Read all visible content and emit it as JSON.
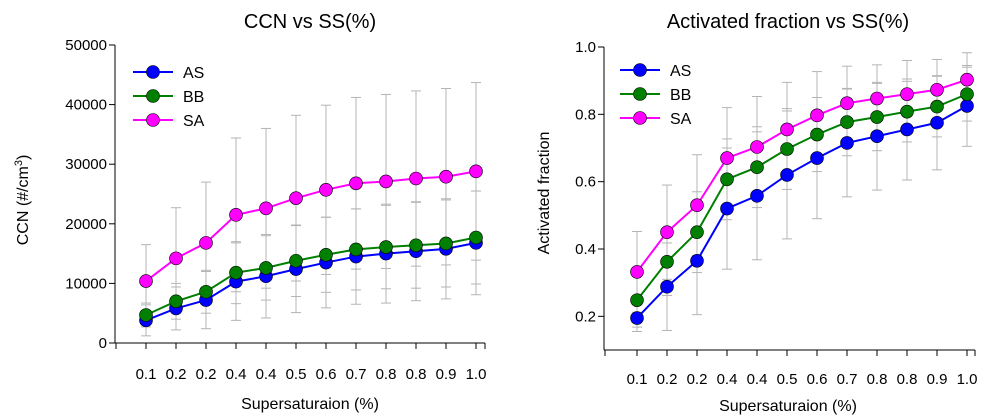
{
  "chart_data": [
    {
      "type": "line",
      "title": "CCN vs SS(%)",
      "xlabel": "Supersaturaion (%)",
      "ylabel_main": "CCN (#/cm",
      "ylabel_sup": "3",
      "ylabel_end": ")",
      "x": [
        0.1,
        0.2,
        0.2,
        0.4,
        0.4,
        0.5,
        0.6,
        0.7,
        0.8,
        0.8,
        0.9,
        1.0
      ],
      "x_tick_labels": [
        "0.1",
        "0.2",
        "0.2",
        "0.4",
        "0.4",
        "0.5",
        "0.6",
        "0.7",
        "0.8",
        "0.8",
        "0.9",
        "1.0"
      ],
      "ylim": [
        0,
        50000
      ],
      "y_ticks": [
        0,
        10000,
        20000,
        30000,
        40000,
        50000
      ],
      "y_tick_labels": [
        "0",
        "10000",
        "20000",
        "30000",
        "40000",
        "50000"
      ],
      "legend_position": "top-left",
      "grid": false,
      "series": [
        {
          "name": "AS",
          "color": "#0000ff",
          "values": [
            3800,
            5800,
            7200,
            10300,
            11200,
            12400,
            13500,
            14500,
            15000,
            15400,
            15800,
            16800
          ],
          "errors": [
            2600,
            3600,
            4800,
            6500,
            7000,
            7300,
            7600,
            8000,
            8300,
            8300,
            8400,
            8700
          ]
        },
        {
          "name": "BB",
          "color": "#008000",
          "values": [
            4700,
            7000,
            8600,
            11800,
            12600,
            13800,
            14800,
            15700,
            16100,
            16400,
            16700,
            17700
          ],
          "errors": [
            2000,
            3000,
            3600,
            5200,
            5400,
            6000,
            6300,
            6800,
            7000,
            7200,
            7300,
            7800
          ]
        },
        {
          "name": "SA",
          "color": "#ff00ff",
          "values": [
            10400,
            14200,
            16800,
            21500,
            22600,
            24300,
            25700,
            26800,
            27100,
            27600,
            27900,
            28800
          ],
          "errors": [
            6100,
            8500,
            10200,
            12900,
            13400,
            13900,
            14200,
            14400,
            14600,
            14700,
            14800,
            14900
          ]
        }
      ]
    },
    {
      "type": "line",
      "title": "Activated fraction vs SS(%)",
      "xlabel": "Supersaturaion (%)",
      "ylabel": "Activated fraction",
      "x": [
        0.1,
        0.2,
        0.2,
        0.4,
        0.4,
        0.5,
        0.6,
        0.7,
        0.8,
        0.8,
        0.9,
        1.0
      ],
      "x_tick_labels": [
        "0.1",
        "0.2",
        "0.2",
        "0.4",
        "0.4",
        "0.5",
        "0.6",
        "0.7",
        "0.8",
        "0.8",
        "0.9",
        "1.0"
      ],
      "ylim": [
        0.1,
        1.0
      ],
      "y_ticks": [
        0.2,
        0.4,
        0.6,
        0.8,
        1.0
      ],
      "y_tick_labels": [
        "0.2",
        "0.4",
        "0.6",
        "0.8",
        "1.0"
      ],
      "legend_position": "top-left",
      "grid": false,
      "series": [
        {
          "name": "AS",
          "color": "#0000ff",
          "values": [
            0.195,
            0.288,
            0.365,
            0.52,
            0.558,
            0.62,
            0.67,
            0.715,
            0.735,
            0.755,
            0.775,
            0.825
          ],
          "errors": [
            0.04,
            0.13,
            0.16,
            0.18,
            0.19,
            0.19,
            0.18,
            0.16,
            0.16,
            0.15,
            0.14,
            0.12
          ]
        },
        {
          "name": "BB",
          "color": "#008000",
          "values": [
            0.248,
            0.362,
            0.45,
            0.607,
            0.643,
            0.697,
            0.74,
            0.777,
            0.792,
            0.808,
            0.823,
            0.86
          ],
          "errors": [
            0.08,
            0.1,
            0.12,
            0.12,
            0.12,
            0.12,
            0.11,
            0.1,
            0.1,
            0.09,
            0.09,
            0.08
          ]
        },
        {
          "name": "SA",
          "color": "#ff00ff",
          "values": [
            0.332,
            0.45,
            0.53,
            0.67,
            0.703,
            0.755,
            0.797,
            0.833,
            0.847,
            0.86,
            0.873,
            0.903
          ],
          "errors": [
            0.12,
            0.14,
            0.15,
            0.15,
            0.15,
            0.14,
            0.13,
            0.11,
            0.1,
            0.1,
            0.09,
            0.08
          ]
        }
      ]
    }
  ]
}
